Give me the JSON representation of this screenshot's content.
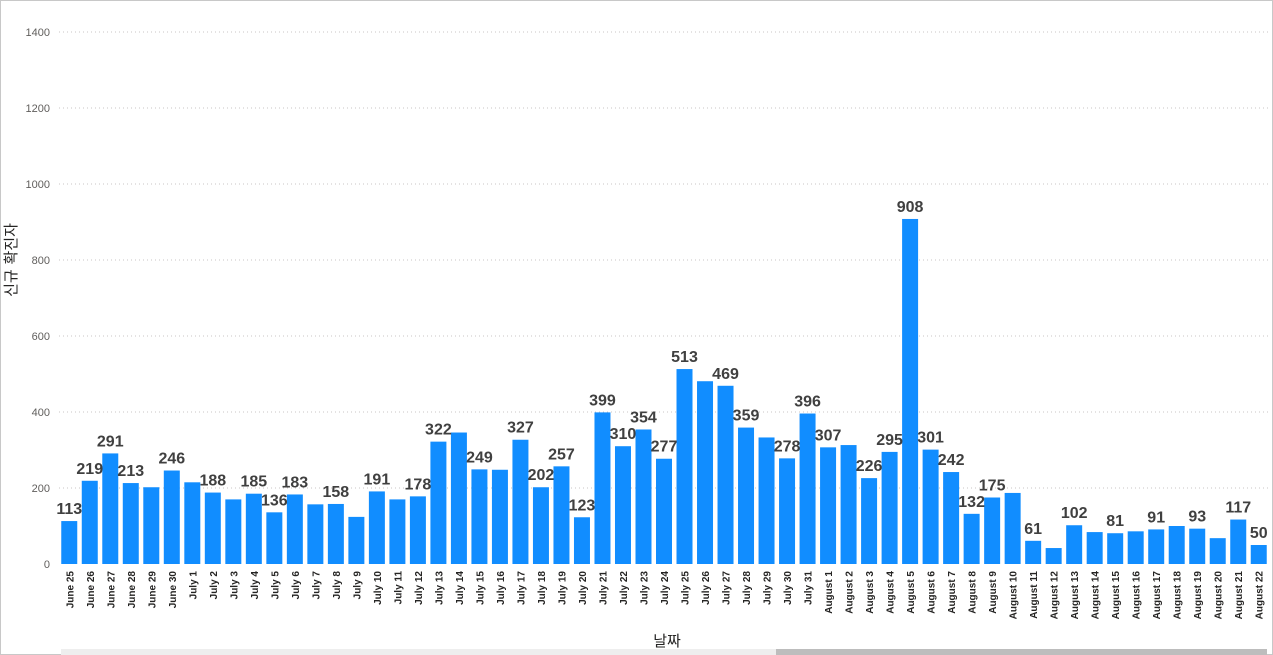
{
  "chart_data": {
    "type": "bar",
    "xlabel": "날짜",
    "ylabel": "신규 확진자",
    "ylim": [
      0,
      1400
    ],
    "yticks": [
      0,
      200,
      400,
      600,
      800,
      1000,
      1200,
      1400
    ],
    "grid": true,
    "bar_color": "#118dff",
    "categories": [
      "June 25",
      "June 26",
      "June 27",
      "June 28",
      "June 29",
      "June 30",
      "July 1",
      "July 2",
      "July 3",
      "July 4",
      "July 5",
      "July 6",
      "July 7",
      "July 8",
      "July 9",
      "July 10",
      "July 11",
      "July 12",
      "July 13",
      "July 14",
      "July 15",
      "July 16",
      "July 17",
      "July 18",
      "July 19",
      "July 20",
      "July 21",
      "July 22",
      "July 23",
      "July 24",
      "July 25",
      "July 26",
      "July 27",
      "July 28",
      "July 29",
      "July 30",
      "July 31",
      "August 1",
      "August 2",
      "August 3",
      "August 4",
      "August 5",
      "August 6",
      "August 7",
      "August 8",
      "August 9",
      "August 10",
      "August 11",
      "August 12",
      "August 13",
      "August 14",
      "August 15",
      "August 16",
      "August 17",
      "August 18",
      "August 19",
      "August 20",
      "August 21",
      "August 22"
    ],
    "values": [
      113,
      219,
      291,
      213,
      202,
      246,
      215,
      188,
      170,
      185,
      136,
      183,
      157,
      158,
      124,
      191,
      170,
      178,
      322,
      346,
      249,
      248,
      327,
      202,
      257,
      123,
      399,
      310,
      354,
      277,
      513,
      481,
      469,
      359,
      333,
      278,
      396,
      307,
      313,
      226,
      295,
      908,
      301,
      242,
      132,
      175,
      187,
      61,
      42,
      102,
      84,
      81,
      86,
      91,
      100,
      93,
      68,
      117,
      50
    ],
    "labels": [
      "113",
      "219",
      "291",
      "213",
      "",
      "246",
      "",
      "188",
      "",
      "185",
      "136",
      "183",
      "",
      "158",
      "",
      "191",
      "",
      "178",
      "322",
      "",
      "249",
      "",
      "327",
      "202",
      "257",
      "123",
      "399",
      "310",
      "354",
      "277",
      "513",
      "",
      "469",
      "359",
      "",
      "278",
      "396",
      "307",
      "",
      "226",
      "295",
      "908",
      "301",
      "242",
      "132",
      "175",
      "",
      "61",
      "",
      "102",
      "",
      "81",
      "",
      "91",
      "",
      "93",
      "",
      "117",
      "50"
    ]
  }
}
